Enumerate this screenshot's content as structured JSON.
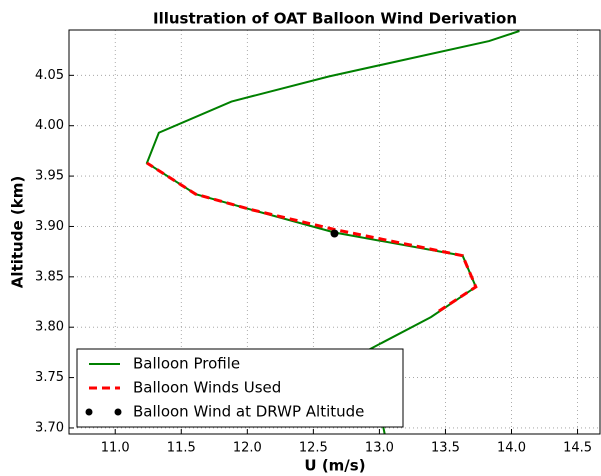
{
  "chart_data": {
    "type": "line",
    "title": "Illustration of OAT Balloon Wind Derivation",
    "x_label": "U (m/s)",
    "y_label": "Altitude (km)",
    "xlim": [
      10.65,
      14.67
    ],
    "ylim": [
      3.694,
      4.095
    ],
    "xticks": [
      {
        "value": 11,
        "label": "11.0"
      },
      11.5,
      {
        "value": 12,
        "label": "12.0"
      },
      12.5,
      {
        "value": 13,
        "label": "13.0"
      },
      13.5,
      {
        "value": 14,
        "label": "14.0"
      },
      14.5
    ],
    "yticks": [
      {
        "value": 3.7,
        "label": "3.70"
      },
      3.75,
      {
        "value": 3.8,
        "label": "3.80"
      },
      3.85,
      {
        "value": 3.9,
        "label": "3.90"
      },
      3.95,
      {
        "value": 4,
        "label": "4.00"
      },
      4.05
    ],
    "grid": true,
    "legend": "lower left",
    "series": [
      {
        "name": "Balloon Profile",
        "color": "#008000",
        "linestyle": "solid",
        "marker": "none",
        "x": [
          13.04,
          12.91,
          13.39,
          13.73,
          13.63,
          12.66,
          12.02,
          11.61,
          11.24,
          11.33,
          11.88,
          12.62,
          13.83,
          14.06
        ],
        "values": [
          3.694,
          3.777,
          3.81,
          3.84,
          3.871,
          3.894,
          3.917,
          3.932,
          3.963,
          3.993,
          4.024,
          4.049,
          4.084,
          4.094
        ]
      },
      {
        "name": "Balloon Winds Used",
        "color": "#ff0000",
        "linestyle": "dashed",
        "marker": "none",
        "x": [
          13.45,
          13.73,
          13.63,
          12.66,
          12.02,
          11.61,
          11.24
        ],
        "values": [
          3.816,
          3.84,
          3.871,
          3.897,
          3.917,
          3.932,
          3.963
        ]
      },
      {
        "name": "Balloon Wind at DRWP Altitude",
        "color": "#000000",
        "linestyle": "none",
        "marker": "circle",
        "x": [
          12.66
        ],
        "values": [
          3.893
        ]
      }
    ]
  }
}
